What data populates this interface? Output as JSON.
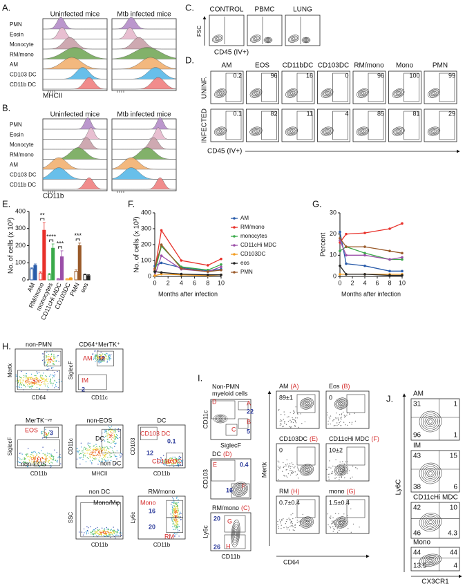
{
  "panels": {
    "A": {
      "label": "A.",
      "headers": [
        "Uninfected mice",
        "Mtb infected mice"
      ],
      "rows": [
        "PMN",
        "Eosin",
        "Monocyte",
        "RM/mono",
        "AM",
        "CD103 DC",
        "CD11b DC"
      ],
      "xlabel": "MHCII"
    },
    "B": {
      "label": "B.",
      "headers": [
        "Uninfected mice",
        "Mtb infected mice"
      ],
      "rows": [
        "PMN",
        "Eosin",
        "Monocyte",
        "RM/mono",
        "AM",
        "CD103 DC",
        "CD11b DC"
      ],
      "xlabel": "CD11b"
    },
    "C": {
      "label": "C.",
      "columns": [
        "CONTROL",
        "PBMC",
        "LUNG"
      ],
      "ylabel": "FSC",
      "xlabel": "CD45 (IV+)"
    },
    "D": {
      "label": "D.",
      "columns": [
        "AM",
        "EOS",
        "CD11bDC",
        "CD103DC",
        "RM/mono",
        "Mono",
        "PMN"
      ],
      "rows": [
        {
          "name": "UNINF.",
          "values": [
            0.2,
            96,
            16,
            0,
            96,
            100,
            99
          ]
        },
        {
          "name": "INFECTED",
          "values": [
            0.1,
            82,
            11,
            4,
            85,
            81,
            29
          ]
        }
      ],
      "xlabel": "CD45 (IV+)"
    },
    "H": {
      "label": "H.",
      "plots": [
        {
          "title": "non-PMN",
          "ylabel": "Mertk",
          "xlabel": "CD64",
          "gates": []
        },
        {
          "title": "CD64⁺MerTK⁺",
          "ylabel": "SiglecF",
          "xlabel": "CD11c",
          "gates": [
            "AM",
            "12",
            "IM",
            "2"
          ]
        },
        {
          "title": "MerTK⁻ᵛᵉ",
          "ylabel": "SiglecF",
          "xlabel": "CD11b",
          "gates": [
            "EOS",
            "3",
            "non-EOS"
          ]
        },
        {
          "title": "non-EOS",
          "ylabel": "CD11c",
          "xlabel": "MHCII",
          "gates": [
            "DC",
            "non DC"
          ]
        },
        {
          "title": "DC",
          "ylabel": "CD103",
          "xlabel": "CD11b",
          "gates": [
            "CD103 DC",
            "0.1",
            "12",
            "CD11b DC"
          ]
        },
        {
          "title": "non DC",
          "ylabel": "SSC",
          "xlabel": "CD11b",
          "gates": [
            "Mono/Mφ"
          ]
        },
        {
          "title": "RM/mono",
          "ylabel": "Ly6c",
          "xlabel": "CD11b",
          "gates": [
            "Mono",
            "16",
            "20",
            "RM"
          ]
        }
      ]
    },
    "I": {
      "label": "I.",
      "left": [
        {
          "title": [
            "Non-PMN",
            "myeloid cells"
          ],
          "ylabel": "CD11c",
          "xlabel": "SiglecF",
          "gates": [
            "D",
            "A",
            "22",
            "B",
            "C",
            "5"
          ]
        },
        {
          "title": "DC",
          "tag": "(D)",
          "ylabel": "CD103",
          "gates": [
            "E",
            "0.4",
            "F",
            "16"
          ]
        },
        {
          "title": "RM/mono",
          "tag": "(C)",
          "ylabel": "Ly6c",
          "xlabel": "CD11b",
          "gates": [
            "20",
            "G",
            "H",
            "26"
          ]
        }
      ],
      "right": [
        {
          "title": "AM",
          "tag": "(A)",
          "value": "89±1"
        },
        {
          "title": "Eos",
          "tag": "(B)",
          "value": "0"
        },
        {
          "title": "CD103DC",
          "tag": "(E)",
          "value": "0"
        },
        {
          "title": "CD11cHi MDC",
          "tag": "(F)",
          "value": "10±2"
        },
        {
          "title": "RM",
          "tag": "(H)",
          "value": "0.7±0.4"
        },
        {
          "title": "mono",
          "tag": "(G)",
          "value": "1.5±0.4"
        }
      ],
      "ylabel": "Mertk",
      "xlabel": "CD64"
    },
    "J": {
      "label": "J.",
      "plots": [
        {
          "title": "AM",
          "values": [
            31,
            1,
            96,
            1
          ]
        },
        {
          "title": "IM",
          "values": [
            43,
            15,
            38,
            6
          ]
        },
        {
          "title": "CD11cHi MDC",
          "values": [
            42,
            10,
            46,
            4.3
          ]
        },
        {
          "title": "Mono",
          "values": [
            44,
            44,
            13.5,
            4
          ]
        }
      ],
      "ylabel": "Ly6C",
      "xlabel": "CX3CR1"
    }
  },
  "chart_data": [
    {
      "panel": "E.",
      "type": "bar",
      "ylabel": "No. of cells (x 10³)",
      "categories": [
        "AM",
        "RM/mono",
        "monocytes",
        "CD11cHi MDC",
        "CD103DC",
        "PMN",
        "eos"
      ],
      "colors": [
        "#2a5caa",
        "#e8312a",
        "#3aaa4a",
        "#9b4fa8",
        "#f39c1f",
        "#9a5a2a",
        "#222222"
      ],
      "series": [
        {
          "filled": false,
          "values": [
            65,
            40,
            30,
            5,
            5,
            50,
            30
          ],
          "errors": [
            5,
            8,
            8,
            3,
            2,
            8,
            5
          ]
        },
        {
          "filled": true,
          "values": [
            85,
            290,
            185,
            135,
            10,
            200,
            25
          ],
          "errors": [
            8,
            45,
            25,
            35,
            3,
            15,
            5
          ]
        }
      ],
      "significance": [
        null,
        "**",
        "****",
        "***",
        null,
        "***",
        null
      ],
      "ylim": [
        0,
        400
      ],
      "yticks": [
        0,
        100,
        200,
        300,
        400
      ]
    },
    {
      "panel": "F.",
      "type": "line",
      "ylabel": "No. of cells (x 10³)",
      "xlabel": "Months after infection",
      "x": [
        0,
        1,
        4,
        8,
        10
      ],
      "xlim": [
        0,
        10
      ],
      "xticks": [
        0,
        2,
        4,
        6,
        8,
        10
      ],
      "ylim": [
        0,
        400
      ],
      "yticks": [
        0,
        100,
        200,
        300,
        400
      ],
      "legend": "right",
      "series": [
        {
          "name": "AM",
          "color": "#2a5caa",
          "values": [
            65,
            85,
            55,
            35,
            45
          ]
        },
        {
          "name": "RM/mono",
          "color": "#e8312a",
          "values": [
            40,
            290,
            100,
            70,
            110
          ]
        },
        {
          "name": "monocytes",
          "color": "#3aaa4a",
          "values": [
            30,
            190,
            60,
            40,
            75
          ]
        },
        {
          "name": "CD11cHi MDC",
          "color": "#9b4fa8",
          "values": [
            5,
            130,
            45,
            30,
            60
          ]
        },
        {
          "name": "CD103DC",
          "color": "#f39c1f",
          "values": [
            5,
            15,
            10,
            5,
            10
          ]
        },
        {
          "name": "eos",
          "color": "#222222",
          "values": [
            30,
            25,
            15,
            10,
            10
          ]
        },
        {
          "name": "PMN",
          "color": "#9a5a2a",
          "values": [
            50,
            200,
            50,
            30,
            40
          ]
        }
      ]
    },
    {
      "panel": "G.",
      "type": "line",
      "ylabel": "Percent",
      "xlabel": "Months after infection",
      "x": [
        0,
        1,
        4,
        8,
        10
      ],
      "xlim": [
        0,
        10
      ],
      "xticks": [
        0,
        2,
        4,
        6,
        8,
        10
      ],
      "ylim": [
        0,
        30
      ],
      "yticks": [
        0,
        10,
        20,
        30
      ],
      "series": [
        {
          "color": "#2a5caa",
          "values": [
            21,
            6,
            5,
            2.5,
            2.5
          ]
        },
        {
          "color": "#e8312a",
          "values": [
            16,
            20,
            20.5,
            22.5,
            25
          ]
        },
        {
          "color": "#3aaa4a",
          "values": [
            12,
            14,
            11,
            8,
            8
          ]
        },
        {
          "color": "#9b4fa8",
          "values": [
            17,
            10,
            10,
            8,
            9
          ]
        },
        {
          "color": "#f39c1f",
          "values": [
            1,
            1,
            1,
            1,
            1
          ]
        },
        {
          "color": "#222222",
          "values": [
            5,
            1,
            1,
            0.5,
            0.5
          ]
        },
        {
          "color": "#9a5a2a",
          "values": [
            18,
            14,
            14,
            12,
            11
          ]
        }
      ]
    }
  ]
}
